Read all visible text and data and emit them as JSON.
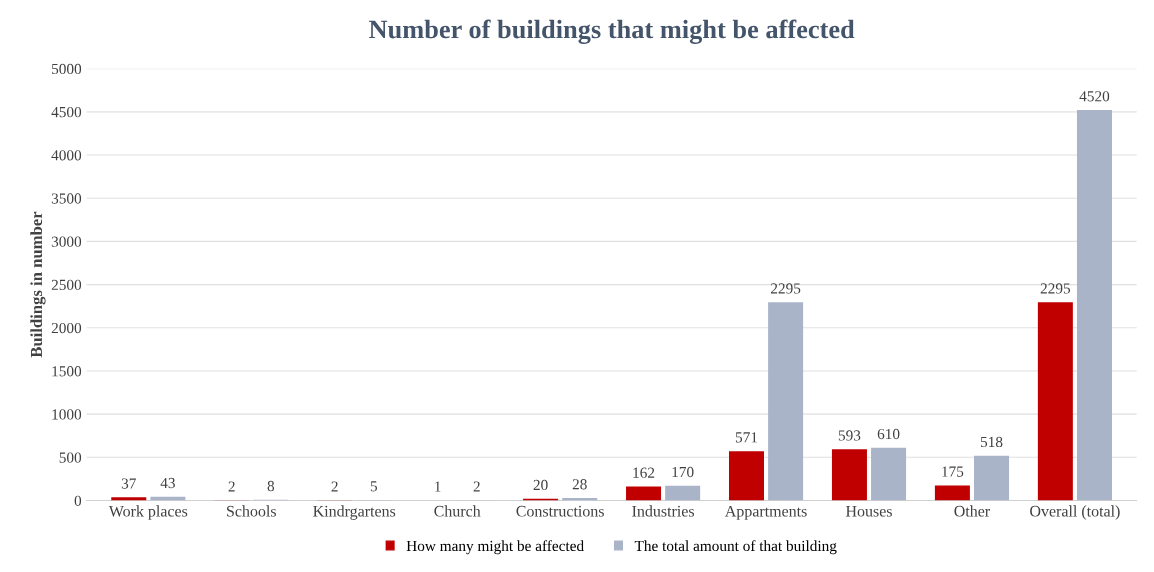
{
  "chart_data": {
    "type": "bar",
    "title": "Number of buildings that might be affected",
    "ylabel": "Buildings in number",
    "categories": [
      "Work places",
      "Schools",
      "Kindrgartens",
      "Church",
      "Constructions",
      "Industries",
      "Appartments",
      "Houses",
      "Other",
      "Overall (total)"
    ],
    "series": [
      {
        "name": "How many might be affected",
        "color": "#c00000",
        "values": [
          37,
          2,
          2,
          1,
          20,
          162,
          571,
          593,
          175,
          2295
        ]
      },
      {
        "name": "The total amount of that building",
        "color": "#aab4c8",
        "values": [
          43,
          8,
          5,
          2,
          28,
          170,
          2295,
          610,
          518,
          4520
        ]
      }
    ],
    "ylim": [
      0,
      5000
    ],
    "yticks": [
      0,
      500,
      1000,
      1500,
      2000,
      2500,
      3000,
      3500,
      4000,
      4500,
      5000
    ],
    "grid": "y",
    "legend": "bottom",
    "data_labels": true
  }
}
